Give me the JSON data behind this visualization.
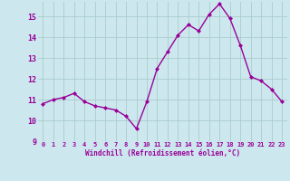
{
  "x": [
    0,
    1,
    2,
    3,
    4,
    5,
    6,
    7,
    8,
    9,
    10,
    11,
    12,
    13,
    14,
    15,
    16,
    17,
    18,
    19,
    20,
    21,
    22,
    23
  ],
  "y": [
    10.8,
    11.0,
    11.1,
    11.3,
    10.9,
    10.7,
    10.6,
    10.5,
    10.2,
    9.6,
    10.9,
    12.5,
    13.3,
    14.1,
    14.6,
    14.3,
    15.1,
    15.6,
    14.9,
    13.6,
    12.1,
    11.9,
    11.5,
    10.9
  ],
  "line_color": "#990099",
  "marker": "D",
  "marker_size": 2,
  "bg_color": "#cce8ee",
  "grid_color": "#aacccc",
  "xlabel": "Windchill (Refroidissement éolien,°C)",
  "xlabel_color": "#990099",
  "tick_color": "#990099",
  "ylim": [
    9,
    15.7
  ],
  "xlim": [
    -0.5,
    23.5
  ],
  "yticks": [
    9,
    10,
    11,
    12,
    13,
    14,
    15
  ],
  "xticks": [
    0,
    1,
    2,
    3,
    4,
    5,
    6,
    7,
    8,
    9,
    10,
    11,
    12,
    13,
    14,
    15,
    16,
    17,
    18,
    19,
    20,
    21,
    22,
    23
  ],
  "linewidth": 1.0,
  "tick_fontsize": 5.0,
  "ytick_fontsize": 6.0,
  "xlabel_fontsize": 5.5
}
